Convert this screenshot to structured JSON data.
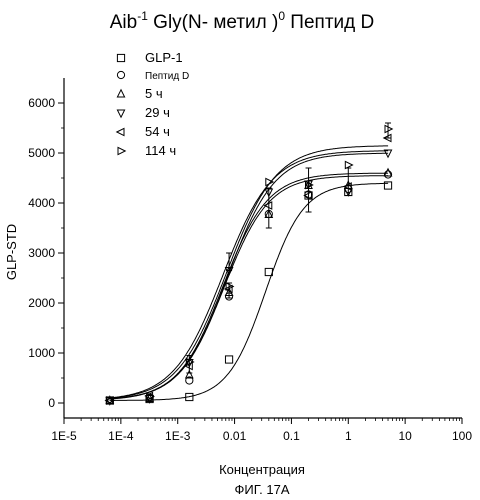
{
  "figure_label": "ФИГ. 17А",
  "chart_data": {
    "type": "scatter",
    "title": {
      "prefix": "Aib",
      "prefix_sup": "-1",
      "middle": " Gly(N- метил )",
      "middle_sup": "0",
      "suffix": " Пептид D"
    },
    "xlabel": "Концентрация",
    "ylabel": "GLP-STD",
    "x_scale": "log",
    "xlim": [
      1e-05,
      100
    ],
    "ylim": [
      -300,
      6500
    ],
    "x_ticks": [
      1e-05,
      0.0001,
      0.001,
      0.01,
      0.1,
      1,
      10,
      100
    ],
    "x_tick_labels": [
      "1E-5",
      "1E-4",
      "1E-3",
      "0.01",
      "0.1",
      "1",
      "10",
      "100"
    ],
    "y_ticks": [
      0,
      1000,
      2000,
      3000,
      4000,
      5000,
      6000
    ],
    "y_tick_labels": [
      "0",
      "1000",
      "2000",
      "3000",
      "4000",
      "5000",
      "6000"
    ],
    "grid": false,
    "legend_position": "top-left",
    "x": [
      6.4e-05,
      0.00032,
      0.0016,
      0.008,
      0.04,
      0.2,
      1,
      5
    ],
    "series": [
      {
        "name": "GLP-1",
        "marker": "square",
        "values": [
          50,
          80,
          120,
          870,
          2620,
          4150,
          4220,
          4350
        ],
        "fit": {
          "bottom": 50,
          "top": 4400,
          "ec50": 0.035,
          "hill": 1.3
        }
      },
      {
        "name": "Пептид D",
        "marker": "circle",
        "values": [
          50,
          110,
          450,
          2130,
          3780,
          4170,
          4280,
          4570
        ],
        "fit": {
          "bottom": 60,
          "top": 4550,
          "ec50": 0.0065,
          "hill": 1.1
        }
      },
      {
        "name": "5 ч",
        "marker": "triangle-up",
        "values": [
          50,
          90,
          560,
          2210,
          3770,
          4350,
          4350,
          4600
        ],
        "fit": {
          "bottom": 50,
          "top": 4600,
          "ec50": 0.0062,
          "hill": 1.1
        }
      },
      {
        "name": "29 ч",
        "marker": "triangle-down",
        "values": [
          50,
          90,
          810,
          2650,
          4220,
          4380,
          4230,
          5000
        ],
        "fit": {
          "bottom": 50,
          "top": 5050,
          "ec50": 0.0062,
          "hill": 1.0
        }
      },
      {
        "name": "54 ч",
        "marker": "triangle-left",
        "values": [
          50,
          140,
          740,
          2280,
          3950,
          4150,
          4330,
          5300
        ],
        "fit": {
          "bottom": 50,
          "top": 5000,
          "ec50": 0.0075,
          "hill": 1.05
        }
      },
      {
        "name": "114 ч",
        "marker": "triangle-right",
        "values": [
          50,
          130,
          820,
          2330,
          4420,
          4360,
          4760,
          5480
        ],
        "fit": {
          "bottom": 50,
          "top": 5150,
          "ec50": 0.0072,
          "hill": 1.0
        }
      }
    ],
    "errors": [
      {
        "x": 0.0016,
        "lo": 600,
        "hi": 950
      },
      {
        "x": 0.008,
        "lo": 2650,
        "hi": 3000
      },
      {
        "x": 0.008,
        "lo": 2100,
        "hi": 2400
      },
      {
        "x": 0.04,
        "lo": 3500,
        "hi": 4300
      },
      {
        "x": 0.2,
        "lo": 3820,
        "hi": 4700
      },
      {
        "x": 1,
        "lo": 4150,
        "hi": 4700
      },
      {
        "x": 5,
        "lo": 5300,
        "hi": 5600
      }
    ]
  }
}
